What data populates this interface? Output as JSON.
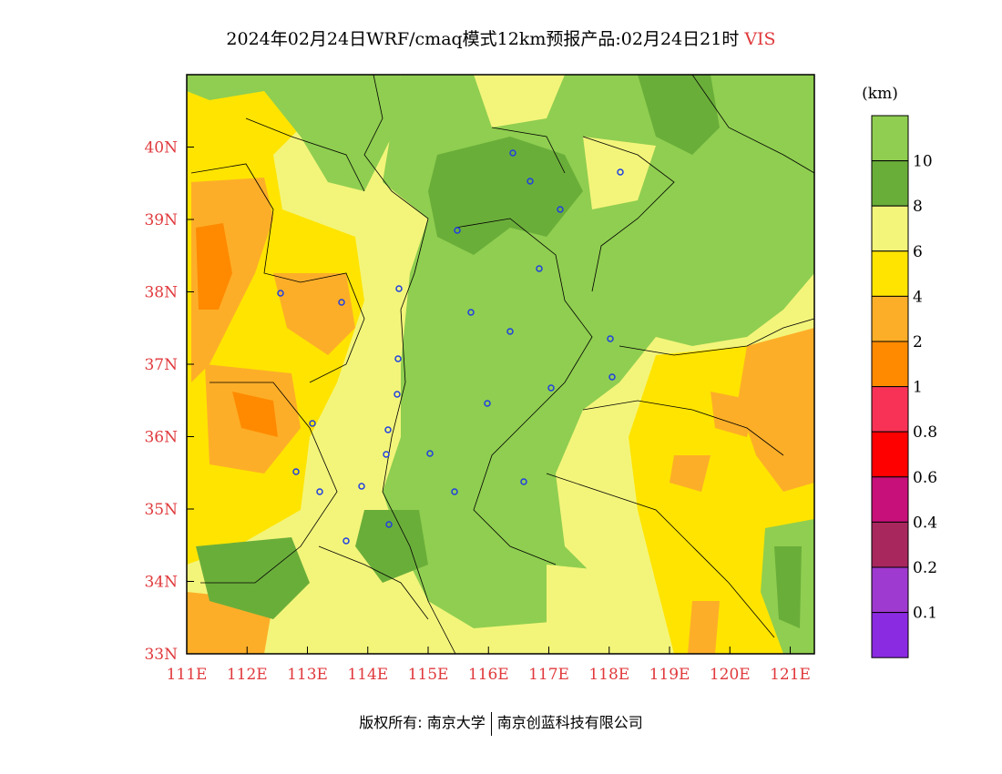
{
  "header": {
    "title": "2024年02月24日WRF/cmaq模式12km预报产品:02月24日21时",
    "variable": "VIS"
  },
  "map": {
    "lat_labels": [
      "40N",
      "39N",
      "38N",
      "37N",
      "36N",
      "35N",
      "34N",
      "33N"
    ],
    "lon_labels": [
      "111E",
      "112E",
      "113E",
      "114E",
      "115E",
      "116E",
      "117E",
      "118E",
      "119E",
      "120E",
      "121E"
    ],
    "lon_range": [
      111,
      121.4
    ],
    "lat_range": [
      33,
      41
    ]
  },
  "colorbar": {
    "unit": "(km)",
    "levels": [
      "10",
      "8",
      "6",
      "4",
      "2",
      "1",
      "0.8",
      "0.6",
      "0.4",
      "0.2",
      "0.1"
    ],
    "colors": [
      "#8fce50",
      "#6aae3a",
      "#f3f57a",
      "#ffe400",
      "#fdae28",
      "#ff8a00",
      "#f83256",
      "#ff0000",
      "#c8107a",
      "#a8285e",
      "#9e3ad0",
      "#8a2be2"
    ]
  },
  "footer": {
    "copyright": "版权所有: 南京大学",
    "company": "南京创蓝科技有限公司"
  }
}
